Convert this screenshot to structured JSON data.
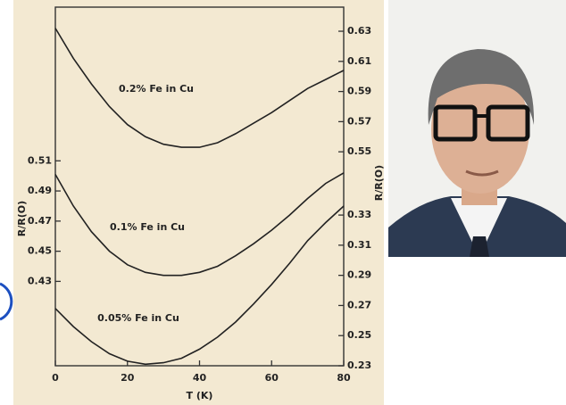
{
  "chart_data": [
    {
      "type": "line",
      "axis": "right",
      "ylabel": "R/R(O)",
      "xlim": [
        0,
        80
      ],
      "ylim": [
        0.408,
        0.646
      ],
      "yticks": [
        0.63,
        0.61,
        0.59,
        0.57,
        0.55
      ],
      "annotation": "0.2% Fe in Cu",
      "series": [
        {
          "color": "#222222",
          "x": [
            0,
            5,
            10,
            15,
            20,
            25,
            30,
            35,
            40,
            45,
            50,
            55,
            60,
            65,
            70,
            75,
            80
          ],
          "values": [
            0.632,
            0.612,
            0.595,
            0.58,
            0.568,
            0.56,
            0.555,
            0.553,
            0.553,
            0.556,
            0.562,
            0.569,
            0.576,
            0.584,
            0.592,
            0.598,
            0.604
          ]
        }
      ]
    },
    {
      "type": "line",
      "axis": "left",
      "ylabel": "R/R(O)",
      "xlim": [
        0,
        80
      ],
      "ylim": [
        0.374,
        0.612
      ],
      "yticks": [
        0.51,
        0.49,
        0.47,
        0.45,
        0.43
      ],
      "annotation": "0.1% Fe in Cu",
      "series": [
        {
          "color": "#222222",
          "x": [
            0,
            5,
            10,
            15,
            20,
            25,
            30,
            35,
            40,
            45,
            50,
            55,
            60,
            65,
            70,
            75,
            80
          ],
          "values": [
            0.501,
            0.48,
            0.463,
            0.45,
            0.441,
            0.436,
            0.434,
            0.434,
            0.436,
            0.44,
            0.447,
            0.455,
            0.464,
            0.474,
            0.485,
            0.495,
            0.502
          ]
        }
      ]
    },
    {
      "type": "line",
      "axis": "right",
      "xlabel": "T (K)",
      "xlim": [
        0,
        80
      ],
      "xticks": [
        0,
        20,
        40,
        60,
        80
      ],
      "ylim": [
        0.23,
        0.468
      ],
      "yticks": [
        0.33,
        0.31,
        0.29,
        0.27,
        0.25,
        0.23
      ],
      "annotation": "0.05% Fe in Cu",
      "series": [
        {
          "color": "#222222",
          "x": [
            0,
            5,
            10,
            15,
            20,
            25,
            30,
            35,
            40,
            45,
            50,
            55,
            60,
            65,
            70,
            75,
            80
          ],
          "values": [
            0.268,
            0.256,
            0.246,
            0.238,
            0.233,
            0.231,
            0.232,
            0.235,
            0.241,
            0.249,
            0.259,
            0.271,
            0.284,
            0.298,
            0.313,
            0.325,
            0.336
          ]
        }
      ]
    }
  ]
}
